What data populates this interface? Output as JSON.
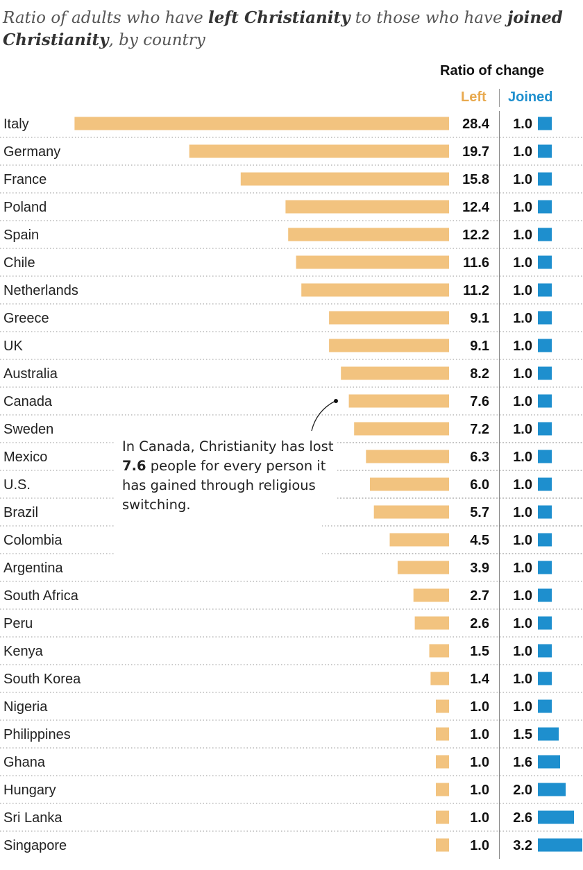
{
  "title": {
    "prefix": "Ratio of adults who have ",
    "bold1": "left Christianity",
    "middle": " to those who have ",
    "bold2": "joined Christianity",
    "suffix": ", by country"
  },
  "header": {
    "ratio_label": "Ratio of change",
    "left_label": "Left",
    "joined_label": "Joined"
  },
  "annotation": {
    "text_before": "In Canada, Christianity has lost ",
    "highlight": "7.6",
    "text_after": " people for every person it has gained through religious switching."
  },
  "colors": {
    "left_bar": "#f2c37f",
    "joined_bar": "#1e8fce",
    "left_header": "#e8a94e",
    "joined_header": "#1e8fce"
  },
  "chart_data": {
    "type": "bar",
    "categories": [
      "Italy",
      "Germany",
      "France",
      "Poland",
      "Spain",
      "Chile",
      "Netherlands",
      "Greece",
      "UK",
      "Australia",
      "Canada",
      "Sweden",
      "Mexico",
      "U.S.",
      "Brazil",
      "Colombia",
      "Argentina",
      "South Africa",
      "Peru",
      "Kenya",
      "South Korea",
      "Nigeria",
      "Philippines",
      "Ghana",
      "Hungary",
      "Sri Lanka",
      "Singapore"
    ],
    "series": [
      {
        "name": "Left",
        "values": [
          28.4,
          19.7,
          15.8,
          12.4,
          12.2,
          11.6,
          11.2,
          9.1,
          9.1,
          8.2,
          7.6,
          7.2,
          6.3,
          6.0,
          5.7,
          4.5,
          3.9,
          2.7,
          2.6,
          1.5,
          1.4,
          1.0,
          1.0,
          1.0,
          1.0,
          1.0,
          1.0
        ]
      },
      {
        "name": "Joined",
        "values": [
          1.0,
          1.0,
          1.0,
          1.0,
          1.0,
          1.0,
          1.0,
          1.0,
          1.0,
          1.0,
          1.0,
          1.0,
          1.0,
          1.0,
          1.0,
          1.0,
          1.0,
          1.0,
          1.0,
          1.0,
          1.0,
          1.0,
          1.5,
          1.6,
          2.0,
          2.6,
          3.2
        ]
      }
    ],
    "annotated_category": "Canada"
  }
}
